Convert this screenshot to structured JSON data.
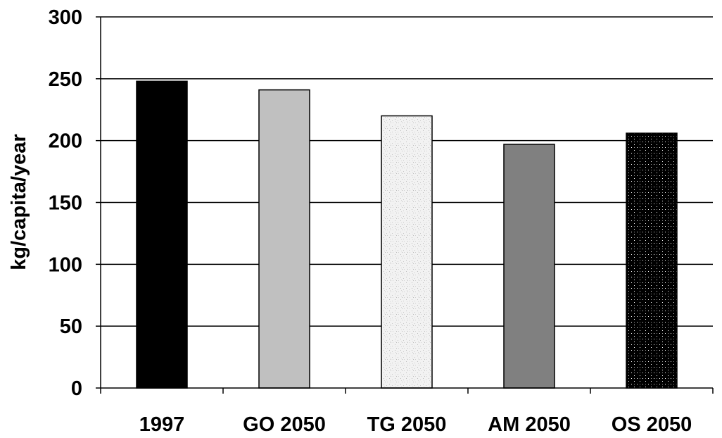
{
  "chart_data": {
    "type": "bar",
    "title": "",
    "xlabel": "",
    "ylabel": "kg/capita/year",
    "categories": [
      "1997",
      "GO 2050",
      "TG 2050",
      "AM 2050",
      "OS 2050"
    ],
    "values": [
      248,
      241,
      220,
      197,
      206
    ],
    "ylim": [
      0,
      300
    ],
    "yticks": [
      0,
      50,
      100,
      150,
      200,
      250,
      300
    ],
    "grid": true,
    "legend": "none",
    "bar_styles": [
      "solid-black",
      "solid-light-gray",
      "speckled-light",
      "solid-dark-gray",
      "black-dotted"
    ],
    "colors": {
      "black": "#000000",
      "light_gray": "#c0c0c0",
      "speckle": "#f0f0f0",
      "dark_gray": "#808080"
    }
  }
}
